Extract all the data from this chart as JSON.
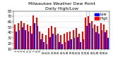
{
  "title": "Milwaukee Weather Dew Point",
  "subtitle": "Daily High/Low",
  "background_color": "#ffffff",
  "plot_bg_color": "#ffffff",
  "grid_color": "#d0d0d0",
  "high_color": "#ff0000",
  "low_color": "#0000ff",
  "days": [
    1,
    2,
    3,
    4,
    5,
    6,
    7,
    8,
    9,
    10,
    11,
    12,
    13,
    14,
    15,
    16,
    17,
    18,
    19,
    20,
    21,
    22,
    23,
    24,
    25,
    26,
    27,
    28,
    29,
    30,
    31
  ],
  "highs": [
    55,
    58,
    62,
    58,
    55,
    52,
    72,
    68,
    42,
    38,
    35,
    48,
    52,
    50,
    38,
    35,
    38,
    40,
    42,
    45,
    48,
    38,
    42,
    68,
    70,
    62,
    55,
    52,
    58,
    55,
    45
  ],
  "lows": [
    42,
    45,
    50,
    45,
    42,
    38,
    58,
    52,
    28,
    22,
    18,
    32,
    38,
    35,
    22,
    18,
    22,
    25,
    28,
    30,
    32,
    22,
    28,
    52,
    58,
    48,
    40,
    38,
    45,
    40,
    30
  ],
  "ylim": [
    10,
    80
  ],
  "yticks": [
    10,
    20,
    30,
    40,
    50,
    60,
    70,
    80
  ],
  "ytick_fontsize": 3.5,
  "xtick_fontsize": 3.0,
  "title_fontsize": 4.5,
  "subtitle_fontsize": 4.0,
  "legend_fontsize": 3.5,
  "dashed_line_indices": [
    23,
    24
  ]
}
